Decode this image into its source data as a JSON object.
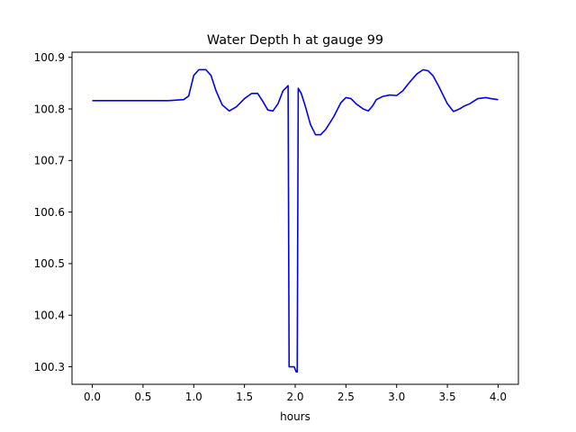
{
  "chart_data": {
    "type": "line",
    "title": "Water Depth h at gauge 99",
    "xlabel": "hours",
    "ylabel": "",
    "xlim": [
      -0.2,
      4.2
    ],
    "ylim": [
      100.266,
      100.91
    ],
    "grid": false,
    "x_ticks": [
      0.0,
      0.5,
      1.0,
      1.5,
      2.0,
      2.5,
      3.0,
      3.5,
      4.0
    ],
    "x_tick_labels": [
      "0.0",
      "0.5",
      "1.0",
      "1.5",
      "2.0",
      "2.5",
      "3.0",
      "3.5",
      "4.0"
    ],
    "y_ticks": [
      100.3,
      100.4,
      100.5,
      100.6,
      100.7,
      100.8,
      100.9
    ],
    "y_tick_labels": [
      "100.3",
      "100.4",
      "100.5",
      "100.6",
      "100.7",
      "100.8",
      "100.9"
    ],
    "series": [
      {
        "color": "#0000ff",
        "x": [
          0.0,
          0.5,
          0.75,
          0.9,
          0.95,
          1.0,
          1.05,
          1.12,
          1.17,
          1.22,
          1.28,
          1.35,
          1.42,
          1.5,
          1.57,
          1.63,
          1.68,
          1.73,
          1.78,
          1.83,
          1.88,
          1.93,
          1.94,
          1.95,
          1.97,
          1.99,
          2.01,
          2.02,
          2.03,
          2.06,
          2.1,
          2.15,
          2.2,
          2.25,
          2.3,
          2.38,
          2.45,
          2.5,
          2.55,
          2.6,
          2.67,
          2.72,
          2.76,
          2.8,
          2.86,
          2.93,
          3.0,
          3.06,
          3.12,
          3.2,
          3.26,
          3.31,
          3.36,
          3.42,
          3.5,
          3.56,
          3.62,
          3.66,
          3.72,
          3.8,
          3.88,
          3.93,
          4.0
        ],
        "y": [
          100.816,
          100.816,
          100.816,
          100.818,
          100.825,
          100.865,
          100.876,
          100.876,
          100.865,
          100.835,
          100.808,
          100.796,
          100.804,
          100.82,
          100.83,
          100.83,
          100.815,
          100.798,
          100.796,
          100.81,
          100.835,
          100.845,
          100.3,
          100.3,
          100.3,
          100.3,
          100.29,
          100.29,
          100.84,
          100.83,
          100.805,
          100.77,
          100.75,
          100.75,
          100.76,
          100.785,
          100.812,
          100.822,
          100.82,
          100.81,
          100.8,
          100.796,
          100.805,
          100.818,
          100.824,
          100.827,
          100.826,
          100.835,
          100.85,
          100.868,
          100.876,
          100.874,
          100.864,
          100.842,
          100.81,
          100.795,
          100.8,
          100.805,
          100.81,
          100.82,
          100.822,
          100.82,
          100.818
        ]
      }
    ]
  }
}
